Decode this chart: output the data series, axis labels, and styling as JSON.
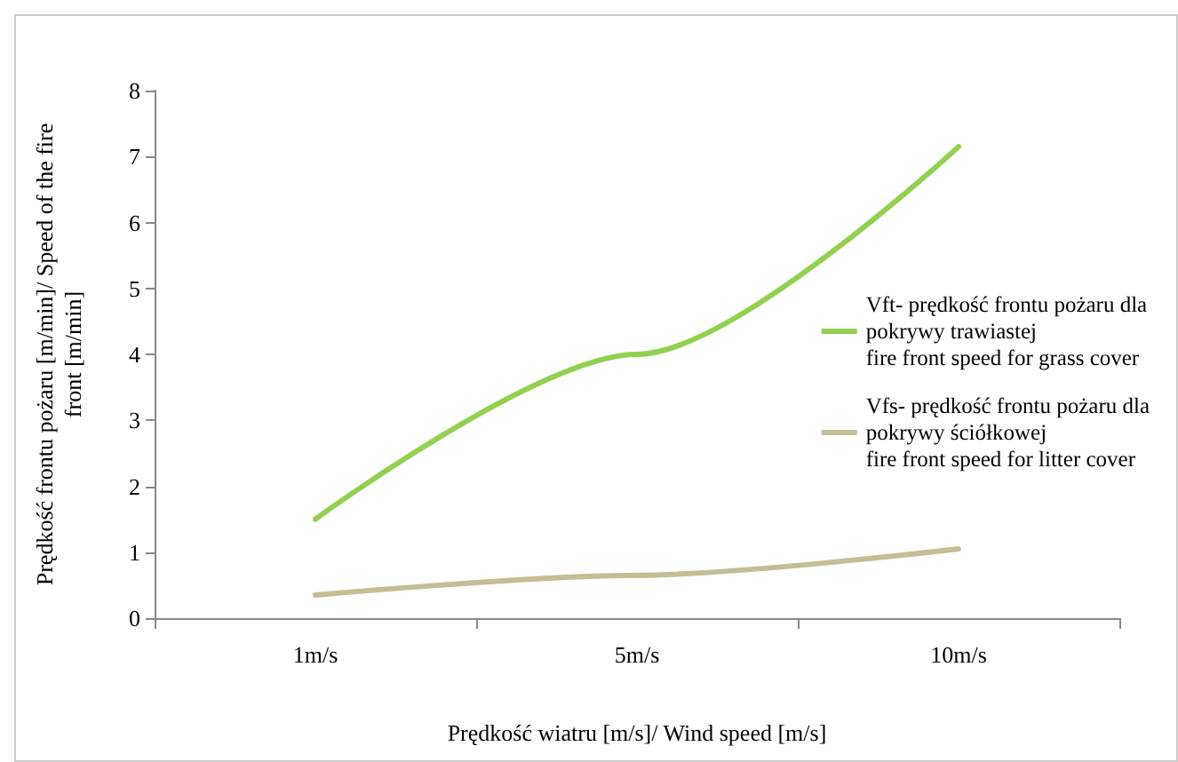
{
  "chart_data": {
    "type": "line",
    "xlabel": "Prędkość wiatru [m/s]/ Wind speed [m/s]",
    "ylabel": "Prędkość frontu pożaru [m/min]/ Speed of the fire\nfront [m/min]",
    "categories": [
      "1m/s",
      "5m/s",
      "10m/s"
    ],
    "series": [
      {
        "name": "Vft- prędkość frontu pożaru dla\npokrywy trawiastej\nfire front speed for grass cover",
        "color": "#92d050",
        "values": [
          1.5,
          4.0,
          7.15
        ]
      },
      {
        "name": "Vfs- prędkość frontu pożaru dla\npokrywy ściółkowej\nfire front speed for litter cover",
        "color": "#c4bd97",
        "values": [
          0.35,
          0.65,
          1.05
        ]
      }
    ],
    "ylim": [
      0,
      8
    ],
    "yticks": [
      0,
      1,
      2,
      3,
      4,
      5,
      6,
      7,
      8
    ],
    "grid": false,
    "legend": "right",
    "marker": "none",
    "line_style": "solid"
  }
}
